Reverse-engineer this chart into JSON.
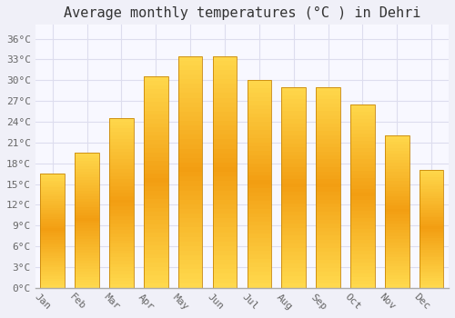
{
  "title": "Average monthly temperatures (°C ) in Dehri",
  "months": [
    "Jan",
    "Feb",
    "Mar",
    "Apr",
    "May",
    "Jun",
    "Jul",
    "Aug",
    "Sep",
    "Oct",
    "Nov",
    "Dec"
  ],
  "temperatures": [
    16.5,
    19.5,
    24.5,
    30.5,
    33.5,
    33.5,
    30.0,
    29.0,
    29.0,
    26.5,
    22.0,
    17.0
  ],
  "bar_color_center": "#F5A623",
  "bar_color_edge": "#FFD54F",
  "bar_outline_color": "#C8860A",
  "ylim": [
    0,
    38
  ],
  "yticks": [
    0,
    3,
    6,
    9,
    12,
    15,
    18,
    21,
    24,
    27,
    30,
    33,
    36
  ],
  "ytick_labels": [
    "0°C",
    "3°C",
    "6°C",
    "9°C",
    "12°C",
    "15°C",
    "18°C",
    "21°C",
    "24°C",
    "27°C",
    "30°C",
    "33°C",
    "36°C"
  ],
  "background_color": "#F0F0F8",
  "plot_bg_color": "#F8F8FF",
  "grid_color": "#DDDDEE",
  "title_fontsize": 11,
  "tick_fontsize": 8,
  "font_family": "monospace",
  "xlabel_rotation": -45
}
